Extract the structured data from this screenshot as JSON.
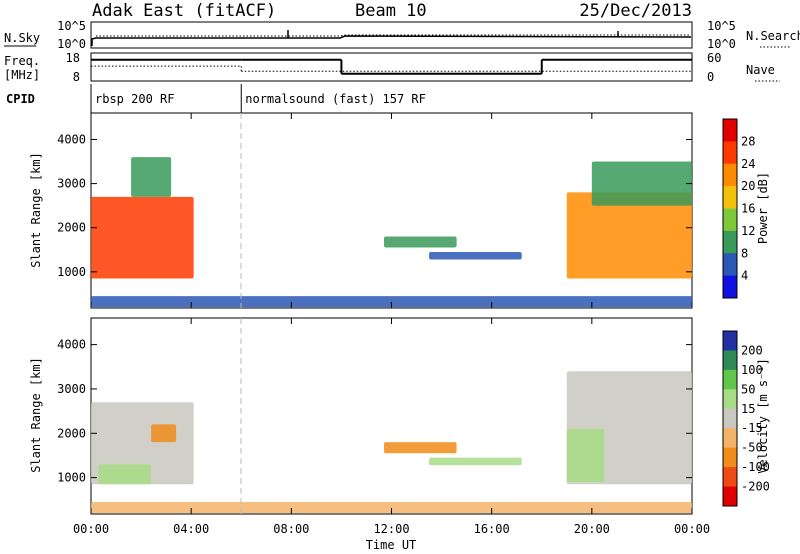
{
  "header": {
    "station": "Adak East (fitACF)",
    "beam": "Beam 10",
    "date": "25/Dec/2013"
  },
  "top_panels": {
    "nsky_label": "N.Sky",
    "nsky_ticks": [
      "10^5",
      "10^0"
    ],
    "nsearch_label": "N.Search",
    "nsearch_ticks": [
      "10^5",
      "10^0"
    ],
    "freq_label": "Freq.",
    "freq_unit": "[MHz]",
    "freq_ticks": [
      "18",
      "8"
    ],
    "nave_label": "Nave",
    "nave_ticks": [
      "60",
      "0"
    ],
    "cpid_label": "CPID",
    "cpid_segments": [
      {
        "label": "rbsp 200 RF",
        "start_h": 0,
        "end_h": 6
      },
      {
        "label": "normalsound (fast) 157 RF",
        "start_h": 6,
        "end_h": 24
      }
    ],
    "freq_steps": [
      {
        "start_h": 0,
        "end_h": 6,
        "value": 15.6
      },
      {
        "start_h": 6,
        "end_h": 10,
        "value": 15.6
      },
      {
        "start_h": 10,
        "end_h": 18,
        "value": 10.6
      },
      {
        "start_h": 18,
        "end_h": 24,
        "value": 15.6
      }
    ],
    "nave_steps": [
      {
        "start_h": 0,
        "end_h": 6,
        "value": 32
      },
      {
        "start_h": 6,
        "end_h": 24,
        "value": 21
      }
    ]
  },
  "chart_data": [
    {
      "type": "heatmap",
      "name": "Power",
      "ylabel": "Slant Range [km]",
      "y_ticks": [
        "4000",
        "3000",
        "2000",
        "1000"
      ],
      "ylim": [
        180,
        4600
      ],
      "xlim_h": [
        0,
        24
      ],
      "colorbar_label": "Power [dB]",
      "colorbar_ticks": [
        "28",
        "24",
        "20",
        "16",
        "12",
        "8",
        "4"
      ],
      "colorbar_colors": [
        "#e00000",
        "#ff3a00",
        "#ff8c00",
        "#f2c20a",
        "#7ec83a",
        "#3a9a5a",
        "#2a58b4",
        "#1010e0"
      ],
      "regions": [
        {
          "t0": 0.0,
          "t1": 4.1,
          "r0": 850,
          "r1": 2700,
          "value": 26
        },
        {
          "t0": 1.6,
          "t1": 3.2,
          "r0": 2700,
          "r1": 3600,
          "value": 12
        },
        {
          "t0": 11.7,
          "t1": 14.6,
          "r0": 1550,
          "r1": 1800,
          "value": 10
        },
        {
          "t0": 13.5,
          "t1": 17.2,
          "r0": 1280,
          "r1": 1450,
          "value": 6
        },
        {
          "t0": 19.0,
          "t1": 24.0,
          "r0": 850,
          "r1": 2800,
          "value": 24
        },
        {
          "t0": 20.0,
          "t1": 24.0,
          "r0": 2500,
          "r1": 3500,
          "value": 10
        },
        {
          "t0": 0.0,
          "t1": 24.0,
          "r0": 200,
          "r1": 450,
          "value": 8
        }
      ]
    },
    {
      "type": "heatmap",
      "name": "Velocity",
      "ylabel": "Slant Range [km]",
      "y_ticks": [
        "4000",
        "3000",
        "2000",
        "1000"
      ],
      "ylim": [
        180,
        4600
      ],
      "xlim_h": [
        0,
        24
      ],
      "colorbar_label": "Velocity [m s⁻¹]",
      "colorbar_ticks": [
        "200",
        "100",
        "50",
        "15",
        "-15",
        "-50",
        "-100",
        "-200"
      ],
      "colorbar_colors": [
        "#2030a0",
        "#2e8b57",
        "#5fc84a",
        "#a8dc86",
        "#c8c8c0",
        "#f4b36a",
        "#f08c1a",
        "#f04a14",
        "#e00000"
      ],
      "regions": [
        {
          "t0": 0.0,
          "t1": 4.1,
          "r0": 850,
          "r1": 2700,
          "value": 0
        },
        {
          "t0": 0.3,
          "t1": 2.4,
          "r0": 850,
          "r1": 1300,
          "value": 30
        },
        {
          "t0": 2.4,
          "t1": 3.4,
          "r0": 1800,
          "r1": 2200,
          "value": -60
        },
        {
          "t0": 11.7,
          "t1": 14.6,
          "r0": 1550,
          "r1": 1800,
          "value": -60
        },
        {
          "t0": 13.5,
          "t1": 17.2,
          "r0": 1280,
          "r1": 1450,
          "value": 20
        },
        {
          "t0": 19.0,
          "t1": 24.0,
          "r0": 850,
          "r1": 3400,
          "value": 0
        },
        {
          "t0": 19.0,
          "t1": 20.5,
          "r0": 900,
          "r1": 2100,
          "value": 30
        },
        {
          "t0": 0.0,
          "t1": 24.0,
          "r0": 200,
          "r1": 450,
          "value": -50
        }
      ]
    }
  ],
  "x_axis": {
    "ticks": [
      "00:00",
      "04:00",
      "08:00",
      "12:00",
      "16:00",
      "20:00",
      "00:00"
    ],
    "tick_hours": [
      0,
      4,
      8,
      12,
      16,
      20,
      24
    ],
    "label": "Time UT"
  }
}
